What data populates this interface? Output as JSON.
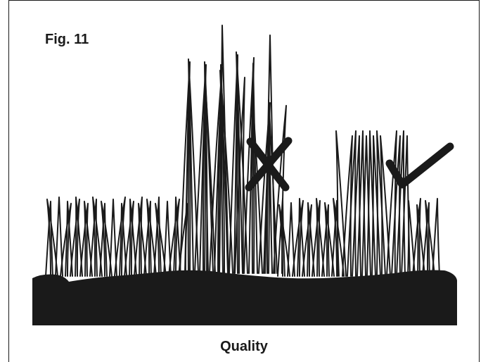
{
  "figure": {
    "label": "Fig. 11",
    "caption": "Quality"
  },
  "marks": {
    "wrong_icon": "cross-mark-icon",
    "right_icon": "check-mark-icon"
  },
  "colors": {
    "ink": "#1a1a1a",
    "paper": "#ffffff"
  }
}
